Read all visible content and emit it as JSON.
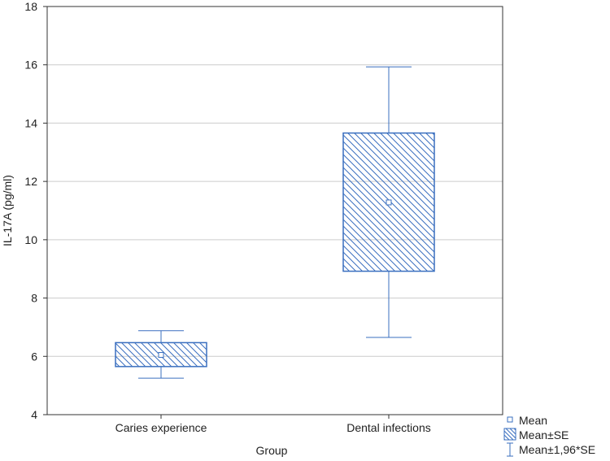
{
  "chart_data": {
    "type": "box",
    "title": "",
    "xlabel": "Group",
    "ylabel": "IL-17A (pg/ml)",
    "ylim": [
      4,
      18
    ],
    "yticks": [
      4,
      6,
      8,
      10,
      12,
      14,
      16,
      18
    ],
    "grid": "horizontal",
    "categories": [
      "Caries experience",
      "Dental infections"
    ],
    "series": [
      {
        "name": "Caries experience",
        "mean": 6.05,
        "se_low": 5.65,
        "se_high": 6.47,
        "ci_low": 5.25,
        "ci_high": 6.88
      },
      {
        "name": "Dental infections",
        "mean": 11.28,
        "se_low": 8.92,
        "se_high": 13.66,
        "ci_low": 6.65,
        "ci_high": 15.93
      }
    ],
    "legend": {
      "position": "bottom-right",
      "items": [
        {
          "label": "Mean",
          "symbol": "square"
        },
        {
          "label": "Mean±SE",
          "symbol": "hatched-box"
        },
        {
          "label": "Mean±1,96*SE",
          "symbol": "whisker"
        }
      ]
    },
    "colors": {
      "box": "#3a6fbf",
      "grid": "#cccccc",
      "frame": "#333333"
    }
  }
}
